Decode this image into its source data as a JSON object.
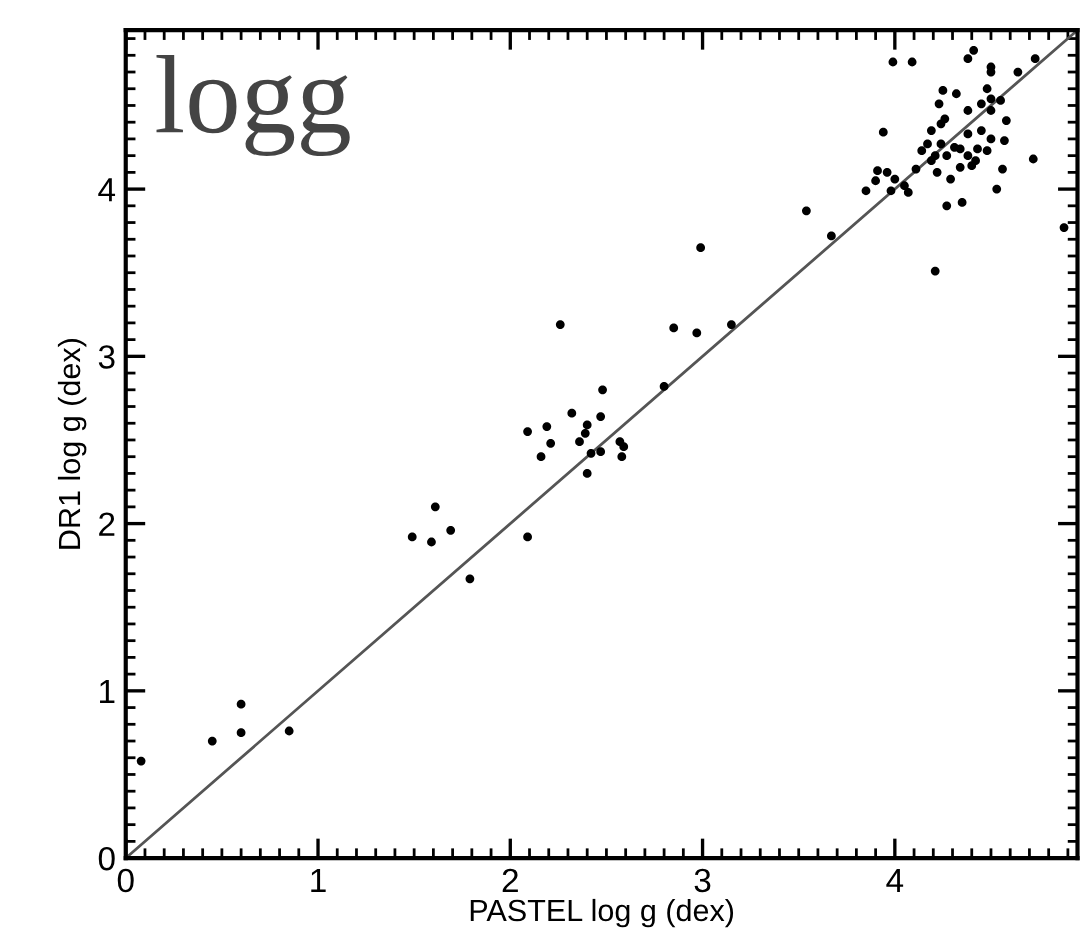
{
  "chart_data": {
    "type": "scatter",
    "xlabel": "PASTEL log g (dex)",
    "ylabel": "DR1 log g (dex)",
    "annotations": [
      "logg"
    ],
    "xlim": [
      0,
      4.95
    ],
    "ylim": [
      0,
      4.95
    ],
    "xticks": [
      0,
      1,
      2,
      3,
      4
    ],
    "yticks": [
      0,
      1,
      2,
      3,
      4
    ],
    "grid": false,
    "marker": "circle",
    "series": [
      {
        "color": "#000000",
        "x": [
          0.08,
          0.45,
          0.6,
          0.6,
          0.85,
          1.49,
          1.59,
          1.61,
          1.69,
          1.79,
          2.26,
          2.85,
          2.97,
          3.15,
          2.8,
          2.48,
          2.32,
          2.47,
          2.09,
          2.19,
          2.21,
          2.4,
          2.36,
          2.39,
          2.42,
          2.47,
          2.57,
          2.59,
          2.58,
          2.16,
          2.4,
          2.09,
          2.99,
          3.54,
          3.67,
          3.99,
          4.09,
          4.41,
          4.38,
          4.5,
          4.5,
          4.73,
          4.64,
          4.25,
          4.32,
          4.48,
          4.5,
          4.55,
          4.45,
          4.23,
          4.38,
          4.26,
          4.5,
          4.58,
          3.94,
          4.24,
          4.19,
          4.45,
          4.5,
          4.38,
          4.57,
          4.17,
          4.24,
          4.31,
          4.34,
          4.43,
          4.14,
          4.21,
          4.27,
          4.48,
          4.38,
          4.42,
          4.19,
          4.72,
          4.34,
          3.91,
          3.96,
          4.0,
          3.9,
          4.05,
          3.85,
          3.98,
          4.07,
          4.11,
          4.22,
          4.29,
          4.4,
          4.56,
          4.53,
          4.27,
          4.35,
          4.21,
          4.88
        ],
        "values": [
          0.58,
          0.7,
          0.92,
          0.75,
          0.76,
          1.92,
          1.89,
          2.1,
          1.96,
          1.67,
          3.19,
          3.17,
          3.14,
          3.19,
          2.82,
          2.8,
          2.66,
          2.64,
          2.55,
          2.58,
          2.48,
          2.59,
          2.49,
          2.54,
          2.42,
          2.43,
          2.49,
          2.46,
          2.4,
          2.4,
          2.3,
          1.92,
          3.65,
          3.87,
          3.72,
          4.76,
          4.76,
          4.83,
          4.78,
          4.73,
          4.7,
          4.78,
          4.7,
          4.59,
          4.57,
          4.6,
          4.54,
          4.53,
          4.51,
          4.51,
          4.47,
          4.42,
          4.47,
          4.41,
          4.34,
          4.39,
          4.35,
          4.35,
          4.3,
          4.33,
          4.29,
          4.27,
          4.27,
          4.25,
          4.24,
          4.24,
          4.23,
          4.2,
          4.2,
          4.23,
          4.2,
          4.17,
          4.17,
          4.18,
          4.13,
          4.11,
          4.1,
          4.06,
          4.05,
          4.02,
          3.99,
          3.99,
          3.98,
          4.12,
          4.1,
          4.06,
          4.14,
          4.12,
          4.0,
          3.9,
          3.92,
          3.51,
          3.77
        ]
      },
      {
        "type": "line",
        "color": "#555555",
        "x": [
          0,
          4.95
        ],
        "values": [
          0,
          4.95
        ],
        "marker": "none"
      }
    ]
  }
}
